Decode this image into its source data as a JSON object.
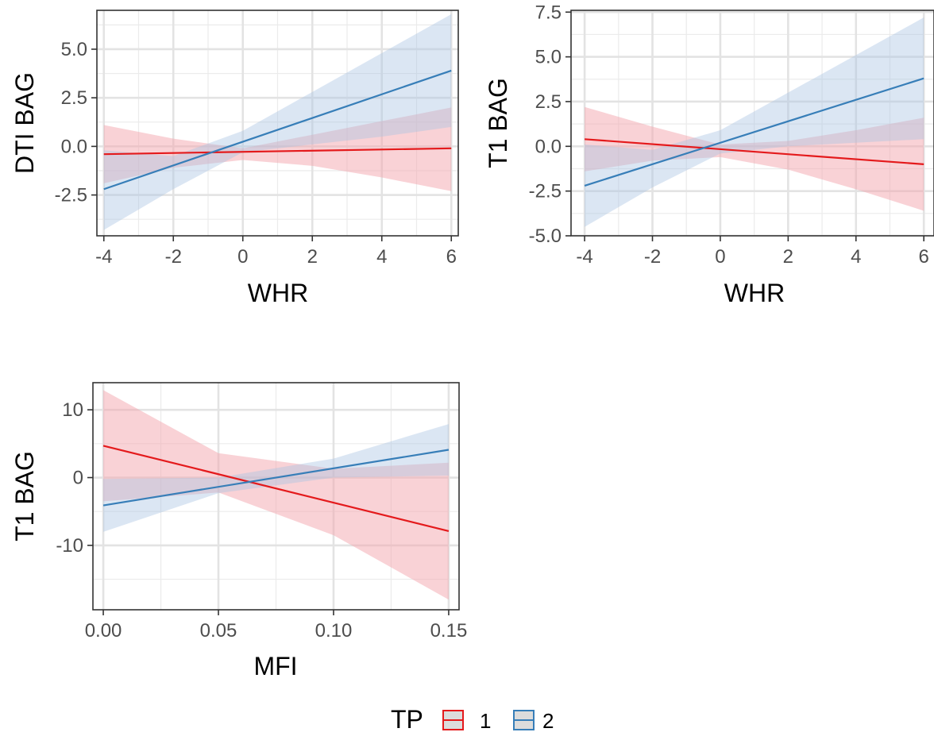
{
  "colors": {
    "tp1": "#E41A1C",
    "tp2": "#377EB8",
    "tp1_fill": "#F4A6AE",
    "tp2_fill": "#A9C3E3"
  },
  "legend": {
    "title": "TP",
    "items": [
      {
        "label": "1",
        "color": "#E41A1C"
      },
      {
        "label": "2",
        "color": "#377EB8"
      }
    ]
  },
  "chart_data": [
    {
      "type": "line",
      "xlabel": "WHR",
      "ylabel": "DTI BAG",
      "xlim": [
        -4.2,
        6.2
      ],
      "ylim": [
        -4.6,
        7.0
      ],
      "x_ticks": [
        -4,
        -2,
        0,
        2,
        4,
        6
      ],
      "x_tick_labels": [
        "-4",
        "-2",
        "0",
        "2",
        "4",
        "6"
      ],
      "y_ticks": [
        -2.5,
        0.0,
        2.5,
        5.0
      ],
      "y_tick_labels": [
        "-2.5",
        "0.0",
        "2.5",
        "5.0"
      ],
      "grid": true,
      "series": [
        {
          "name": "1",
          "x": [
            -4,
            6
          ],
          "y": [
            -0.4,
            -0.1
          ],
          "ci_x": [
            -4,
            -2,
            0,
            2,
            4,
            6
          ],
          "ci_lower": [
            -1.9,
            -1.1,
            -0.7,
            -1.0,
            -1.6,
            -2.3
          ],
          "ci_upper": [
            1.1,
            0.4,
            -0.1,
            0.6,
            1.3,
            2.0
          ]
        },
        {
          "name": "2",
          "x": [
            -4,
            6
          ],
          "y": [
            -2.2,
            3.9
          ],
          "ci_x": [
            -4,
            -2,
            0,
            2,
            4,
            6
          ],
          "ci_lower": [
            -4.3,
            -2.2,
            -0.3,
            0.1,
            0.5,
            1.0
          ],
          "ci_upper": [
            -0.2,
            -0.5,
            0.8,
            2.8,
            4.8,
            6.8
          ]
        }
      ]
    },
    {
      "type": "line",
      "xlabel": "WHR",
      "ylabel": "T1 BAG",
      "xlim": [
        -4.4,
        6.3
      ],
      "ylim": [
        -5.0,
        7.6
      ],
      "x_ticks": [
        -4,
        -2,
        0,
        2,
        4,
        6
      ],
      "x_tick_labels": [
        "-4",
        "-2",
        "0",
        "2",
        "4",
        "6"
      ],
      "y_ticks": [
        -5.0,
        -2.5,
        0.0,
        2.5,
        5.0,
        7.5
      ],
      "y_tick_labels": [
        "-5.0",
        "-2.5",
        "0.0",
        "2.5",
        "5.0",
        "7.5"
      ],
      "grid": true,
      "series": [
        {
          "name": "1",
          "x": [
            -4,
            6
          ],
          "y": [
            0.4,
            -1.0
          ],
          "ci_x": [
            -4,
            -2,
            0,
            2,
            4,
            6
          ],
          "ci_lower": [
            -1.4,
            -0.8,
            -0.6,
            -1.3,
            -2.4,
            -3.6
          ],
          "ci_upper": [
            2.2,
            1.1,
            0.1,
            0.3,
            0.9,
            1.6
          ]
        },
        {
          "name": "2",
          "x": [
            -4,
            6
          ],
          "y": [
            -2.2,
            3.8
          ],
          "ci_x": [
            -4,
            -2,
            0,
            2,
            4,
            6
          ],
          "ci_lower": [
            -4.5,
            -2.3,
            -0.4,
            0.0,
            0.2,
            0.4
          ],
          "ci_upper": [
            0.1,
            -0.2,
            0.9,
            3.0,
            5.1,
            7.2
          ]
        }
      ]
    },
    {
      "type": "line",
      "xlabel": "MFI",
      "ylabel": "T1 BAG",
      "xlim": [
        -0.0045,
        0.1545
      ],
      "ylim": [
        -19.5,
        14.0
      ],
      "x_ticks": [
        0.0,
        0.05,
        0.1,
        0.15
      ],
      "x_tick_labels": [
        "0.00",
        "0.05",
        "0.10",
        "0.15"
      ],
      "y_ticks": [
        -10,
        0,
        10
      ],
      "y_tick_labels": [
        "-10",
        "0",
        "10"
      ],
      "grid": true,
      "series": [
        {
          "name": "1",
          "x": [
            0,
            0.15
          ],
          "y": [
            4.7,
            -7.9
          ],
          "ci_x": [
            0,
            0.05,
            0.1,
            0.15
          ],
          "ci_lower": [
            -3.5,
            -2.2,
            -8.5,
            -18.0
          ],
          "ci_upper": [
            12.9,
            3.6,
            1.3,
            2.2
          ]
        },
        {
          "name": "2",
          "x": [
            0,
            0.15
          ],
          "y": [
            -4.1,
            4.1
          ],
          "ci_x": [
            0,
            0.05,
            0.1,
            0.15
          ],
          "ci_lower": [
            -8.0,
            -2.3,
            0.0,
            0.3
          ],
          "ci_upper": [
            -0.2,
            0.0,
            2.8,
            7.9
          ]
        }
      ]
    }
  ]
}
